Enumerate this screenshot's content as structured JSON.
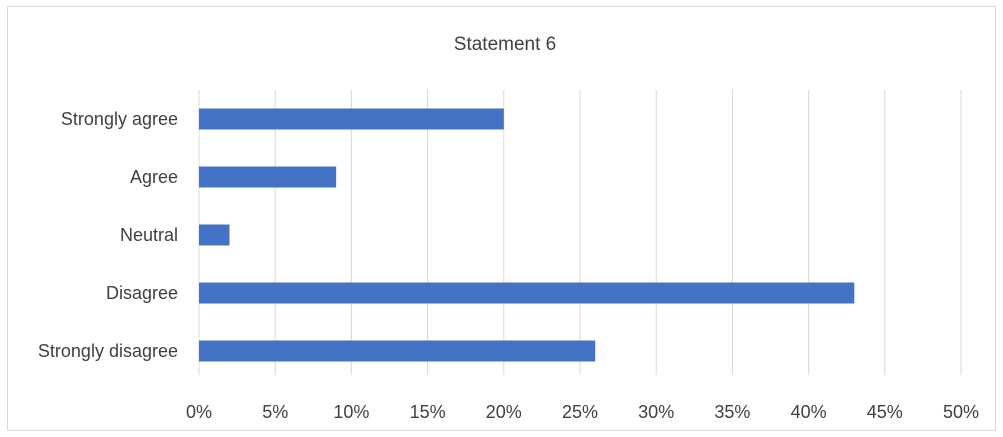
{
  "chart_data": {
    "type": "bar",
    "orientation": "horizontal",
    "title": "Statement 6",
    "categories": [
      "Strongly agree",
      "Agree",
      "Neutral",
      "Disagree",
      "Strongly disagree"
    ],
    "values": [
      20,
      9,
      2,
      43,
      26
    ],
    "xlim": [
      0,
      50
    ],
    "x_ticks": [
      0,
      5,
      10,
      15,
      20,
      25,
      30,
      35,
      40,
      45,
      50
    ],
    "x_tick_labels": [
      "0%",
      "5%",
      "10%",
      "15%",
      "20%",
      "25%",
      "30%",
      "35%",
      "40%",
      "45%",
      "50%"
    ],
    "grid": "vertical",
    "legend": "none",
    "bar_color": "#4472c4",
    "grid_color": "#d9d9d9"
  }
}
